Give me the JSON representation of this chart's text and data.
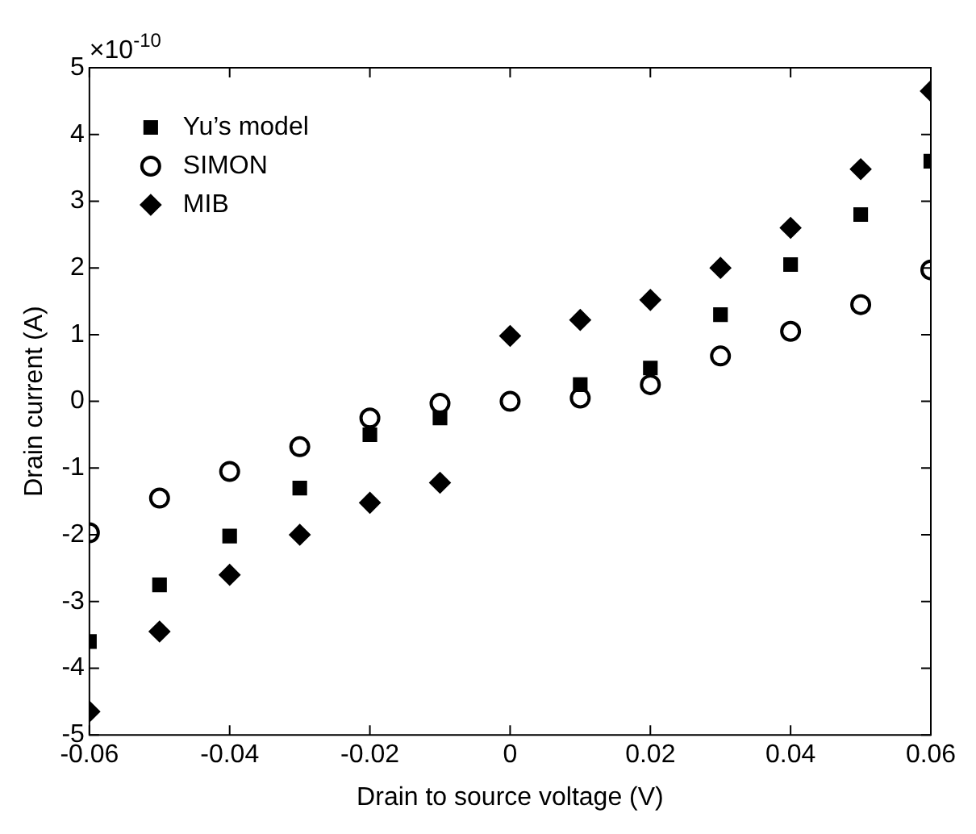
{
  "chart_data": {
    "type": "scatter",
    "xlabel": "Drain to source voltage (V)",
    "ylabel": "Drain current (A)",
    "annotations": [
      "×10$^{-10}$"
    ],
    "x": [
      -0.06,
      -0.05,
      -0.04,
      -0.03,
      -0.02,
      -0.01,
      0,
      0.01,
      0.02,
      0.03,
      0.04,
      0.05,
      0.06
    ],
    "series": [
      {
        "name": "Yu’s model",
        "color": "#000000",
        "marker": "square",
        "values": [
          -3.6,
          -2.75,
          -2.02,
          -1.3,
          -0.5,
          -0.25,
          null,
          0.25,
          0.5,
          1.3,
          2.05,
          2.8,
          3.6
        ]
      },
      {
        "name": "SIMON",
        "color": "#000000",
        "marker": "circle",
        "values": [
          -1.97,
          -1.45,
          -1.05,
          -0.68,
          -0.25,
          -0.03,
          0,
          0.05,
          0.25,
          0.68,
          1.05,
          1.45,
          1.97
        ]
      },
      {
        "name": "MIB",
        "color": "#000000",
        "marker": "diamond",
        "values": [
          -4.65,
          -3.45,
          -2.6,
          -2.0,
          -1.52,
          -1.22,
          0.98,
          1.22,
          1.52,
          2.0,
          2.6,
          3.48,
          4.65
        ]
      }
    ],
    "xlim": [
      -0.06,
      0.06
    ],
    "xticks": [
      {
        "value": -0.06,
        "label": "-0.06"
      },
      {
        "value": -0.04,
        "label": "-0.04"
      },
      {
        "value": -0.02,
        "label": "-0.02"
      },
      0,
      {
        "value": 0.02,
        "label": "0.02"
      },
      {
        "value": 0.04,
        "label": "0.04"
      },
      {
        "value": 0.06,
        "label": "0.06"
      }
    ],
    "ylim": [
      -5,
      5
    ],
    "yticks": [
      -5,
      -4,
      -3,
      -2,
      -1,
      0,
      1,
      2,
      3,
      4,
      5
    ],
    "grid": false,
    "legend": "top left"
  }
}
